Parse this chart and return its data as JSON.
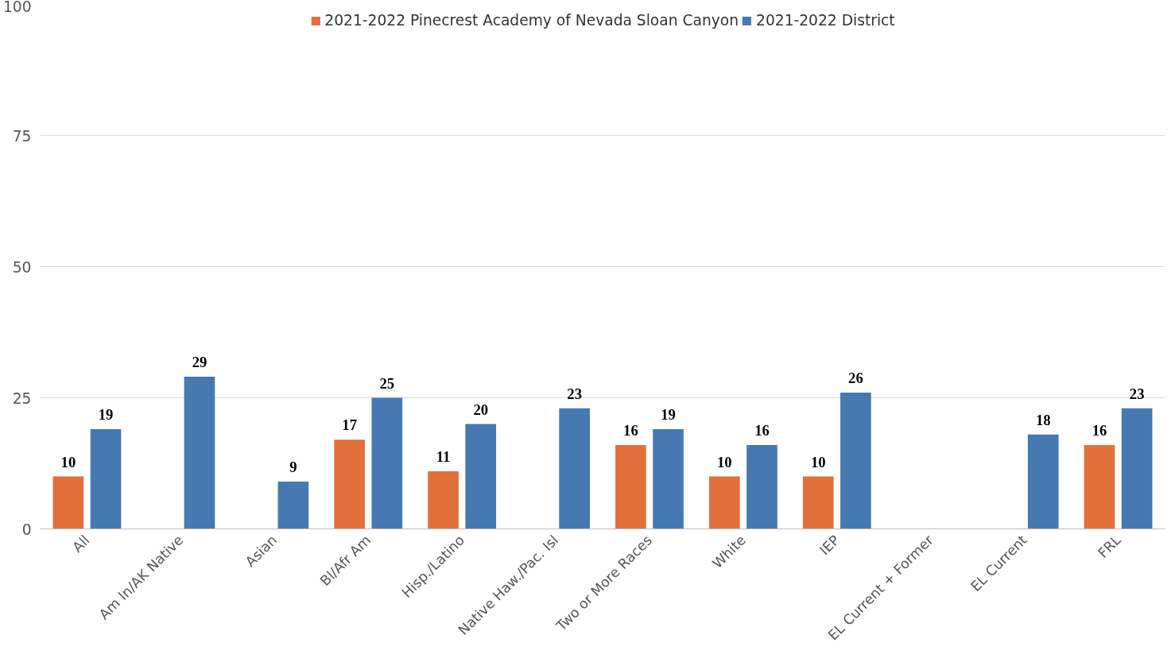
{
  "chart_data": {
    "type": "bar",
    "categories": [
      "All",
      "Am In/AK Native",
      "Asian",
      "Bl/Afr Am",
      "Hisp./Latino",
      "Native Haw./Pac. Isl",
      "Two or More Races",
      "White",
      "IEP",
      "EL Current + Former",
      "EL Current",
      "FRL"
    ],
    "series": [
      {
        "name": "2021-2022 Pinecrest Academy of Nevada Sloan Canyon",
        "color": "#e2703a",
        "values": [
          10,
          null,
          null,
          17,
          11,
          null,
          16,
          10,
          10,
          null,
          null,
          16
        ]
      },
      {
        "name": "2021-2022 District",
        "color": "#4679b2",
        "values": [
          19,
          29,
          9,
          25,
          20,
          23,
          19,
          16,
          26,
          null,
          18,
          23
        ]
      }
    ],
    "ylim": [
      0,
      100
    ],
    "yticks": [
      0,
      25,
      50,
      75,
      100
    ],
    "grid": "y",
    "legend": "top",
    "data_labels": true
  }
}
